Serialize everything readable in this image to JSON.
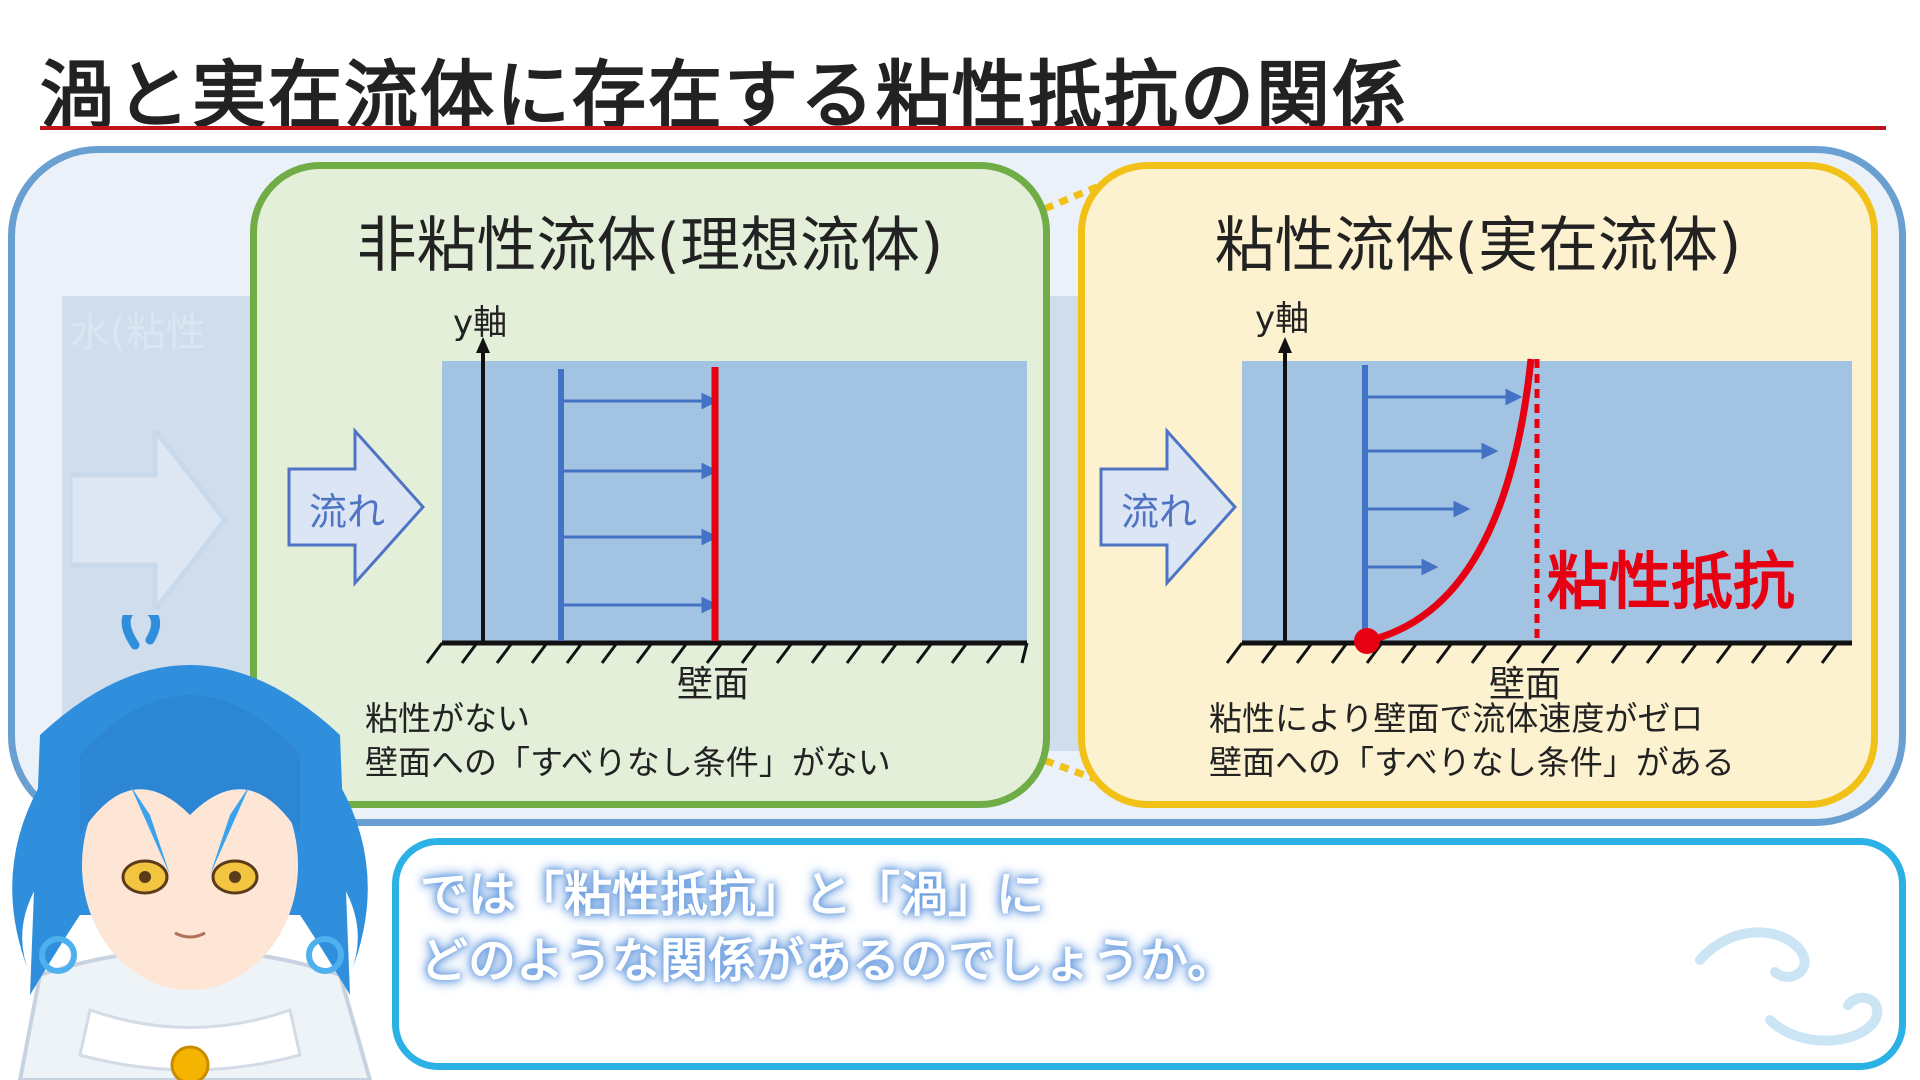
{
  "title": "渦と実在流体に存在する粘性抵抗の関係",
  "background_panel": {
    "ghost_label": "水(粘性"
  },
  "inviscid": {
    "title": "非粘性流体(理想流体)",
    "axis_label": "y軸",
    "flow_label": "流れ",
    "wall_label": "壁面",
    "desc_line1": "粘性がない",
    "desc_line2": "壁面への「すべりなし条件」がない"
  },
  "viscous": {
    "title": "粘性流体(実在流体)",
    "axis_label": "y軸",
    "flow_label": "流れ",
    "wall_label": "壁面",
    "resistance_label": "粘性抵抗",
    "desc_line1": "粘性により壁面で流体速度がゼロ",
    "desc_line2": "壁面への「すべりなし条件」がある"
  },
  "caption": {
    "line1": "では「粘性抵抗」と「渦」に",
    "line2": "どのような関係があるのでしょうか。"
  },
  "colors": {
    "title_rule": "#c0141c",
    "outer_border": "#6a9fd1",
    "inviscid_border": "#70ad47",
    "inviscid_bg": "#e4efda",
    "viscous_border": "#f2c118",
    "viscous_bg": "#fdf2d0",
    "fluid": "#a3c3e3",
    "velocity_arrow": "#4472c4",
    "profile": "#e60012",
    "caption_border": "#2cb1e6"
  }
}
